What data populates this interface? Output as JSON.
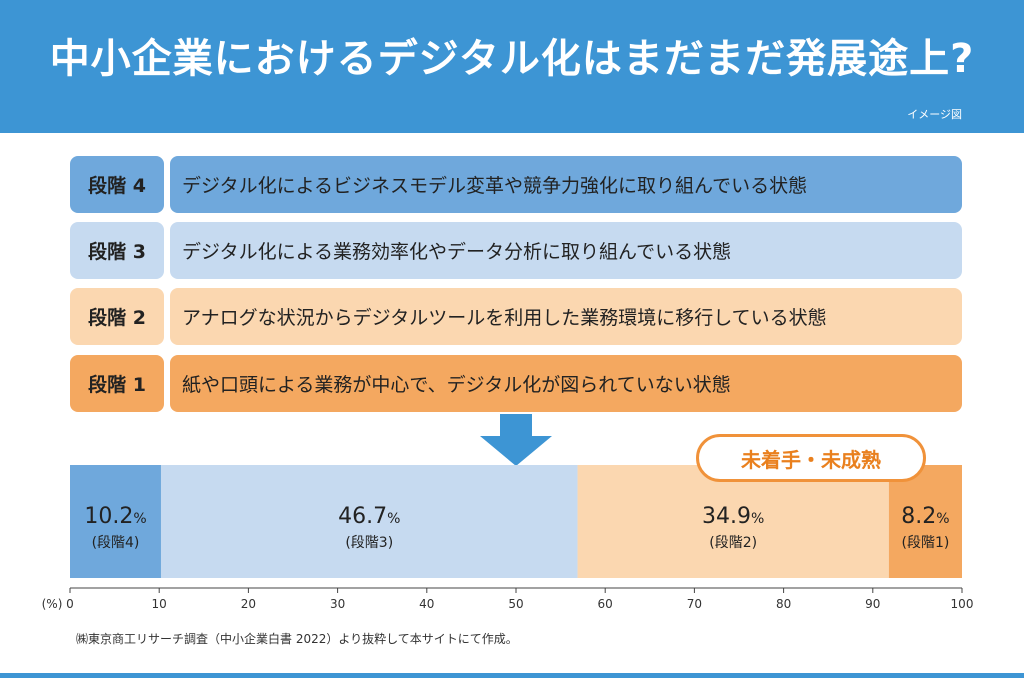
{
  "header": {
    "title": "中小企業におけるデジタル化はまだまだ発展途上?",
    "note": "イメージ図"
  },
  "stages": [
    {
      "label": "段階 4",
      "description": "デジタル化によるビジネスモデル変革や競争力強化に取り組んでいる状態",
      "label_color": "#6fa8dc",
      "desc_color": "#6fa8dc"
    },
    {
      "label": "段階 3",
      "description": "デジタル化による業務効率化やデータ分析に取り組んでいる状態",
      "label_color": "#c6daf0",
      "desc_color": "#c6daf0"
    },
    {
      "label": "段階 2",
      "description": "アナログな状況からデジタルツールを利用した業務環境に移行している状態",
      "label_color": "#fbd7b0",
      "desc_color": "#fbd7b0"
    },
    {
      "label": "段階 1",
      "description": "紙や口頭による業務が中心で、デジタル化が図られていない状態",
      "label_color": "#f4a860",
      "desc_color": "#f4a860"
    }
  ],
  "badge": {
    "label": "未着手・未成熟"
  },
  "colors": {
    "header": "#3d95d4",
    "arrow": "#3d95d4",
    "badge_border": "#f0923a"
  },
  "chart_data": {
    "type": "bar",
    "orientation": "horizontal-stacked",
    "segments": [
      {
        "value": 10.2,
        "label": "10.2",
        "unit": "%",
        "stage": "(段階4)",
        "color": "#6fa8dc"
      },
      {
        "value": 46.7,
        "label": "46.7",
        "unit": "%",
        "stage": "(段階3)",
        "color": "#c6daf0"
      },
      {
        "value": 34.9,
        "label": "34.9",
        "unit": "%",
        "stage": "(段階2)",
        "color": "#fbd7b0"
      },
      {
        "value": 8.2,
        "label": "8.2",
        "unit": "%",
        "stage": "(段階1)",
        "color": "#f4a860"
      }
    ],
    "xaxis_unit": "(%)",
    "xlim": [
      0,
      100
    ],
    "xticks": [
      0,
      10,
      20,
      30,
      40,
      50,
      60,
      70,
      80,
      90,
      100
    ]
  },
  "source": "㈱東京商工リサーチ調査（中小企業白書 2022）より抜粋して本サイトにて作成。"
}
